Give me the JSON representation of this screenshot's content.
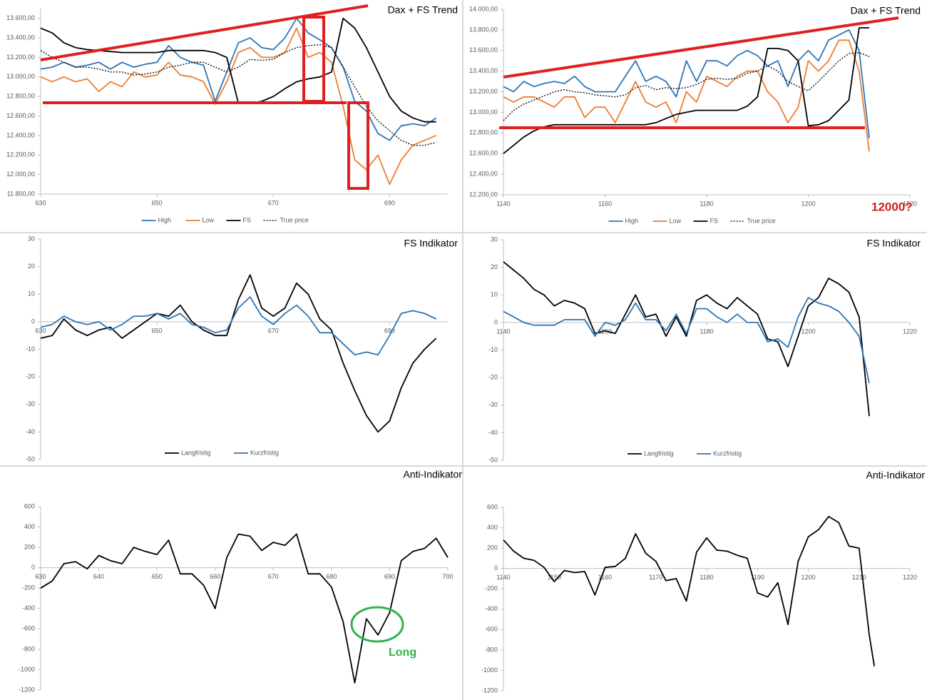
{
  "chart_data": [
    {
      "type": "line",
      "title": "Dax + FS Trend",
      "legend": "bottom",
      "x_axis_position": "bottom",
      "x": [
        630,
        632,
        634,
        636,
        638,
        640,
        642,
        644,
        646,
        648,
        650,
        652,
        654,
        656,
        658,
        660,
        662,
        664,
        666,
        668,
        670,
        672,
        674,
        676,
        678,
        680,
        682,
        684,
        686,
        688,
        690,
        692,
        694,
        696,
        698
      ],
      "xlim": [
        630,
        700
      ],
      "xticks": [
        630,
        650,
        670,
        690
      ],
      "ylim": [
        11800,
        13700
      ],
      "yticks": [
        {
          "value": 11800,
          "label": "11.800,00"
        },
        {
          "value": 12000,
          "label": "12.000,00"
        },
        {
          "value": 12200,
          "label": "12.200,00"
        },
        {
          "value": 12400,
          "label": "12.400,00"
        },
        {
          "value": 12600,
          "label": "12.600,00"
        },
        {
          "value": 12800,
          "label": "12.800,00"
        },
        {
          "value": 13000,
          "label": "13.000,00"
        },
        {
          "value": 13200,
          "label": "13.200,00"
        },
        {
          "value": 13400,
          "label": "13.400,00"
        },
        {
          "value": 13600,
          "label": "13.600,00"
        }
      ],
      "series": [
        {
          "name": "High",
          "color": "#2e75b6",
          "values": [
            13080,
            13100,
            13150,
            13100,
            13120,
            13150,
            13080,
            13150,
            13100,
            13130,
            13150,
            13320,
            13200,
            13150,
            13120,
            12750,
            13050,
            13350,
            13400,
            13300,
            13280,
            13400,
            13600,
            13450,
            13380,
            13300,
            13100,
            12750,
            12650,
            12420,
            12350,
            12500,
            12520,
            12500,
            12580
          ]
        },
        {
          "name": "Low",
          "color": "#ed7d31",
          "values": [
            13000,
            12950,
            13000,
            12950,
            12980,
            12850,
            12950,
            12900,
            13050,
            13000,
            13020,
            13150,
            13020,
            13000,
            12950,
            12720,
            12950,
            13250,
            13300,
            13200,
            13200,
            13250,
            13500,
            13200,
            13250,
            13150,
            12700,
            12150,
            12050,
            12200,
            11900,
            12150,
            12300,
            12350,
            12400
          ]
        },
        {
          "name": "FS",
          "color": "#000000",
          "values": [
            13500,
            13450,
            13350,
            13300,
            13280,
            13270,
            13260,
            13250,
            13250,
            13250,
            13250,
            13270,
            13270,
            13270,
            13270,
            13250,
            13200,
            12730,
            12730,
            12750,
            12800,
            12880,
            12950,
            12980,
            13000,
            13050,
            13600,
            13500,
            13300,
            13050,
            12800,
            12650,
            12580,
            12540,
            12540
          ]
        },
        {
          "name": "True price",
          "color": "#000000",
          "line_style": "dotted",
          "values": [
            13270,
            13200,
            13150,
            13100,
            13100,
            13080,
            13050,
            13050,
            13020,
            13030,
            13050,
            13100,
            13120,
            13150,
            13150,
            13100,
            13050,
            13100,
            13180,
            13170,
            13180,
            13250,
            13300,
            13320,
            13330,
            13300,
            13100,
            12900,
            12700,
            12550,
            12450,
            12350,
            12300,
            12300,
            12330
          ]
        }
      ]
    },
    {
      "type": "line",
      "title": "Dax + FS Trend",
      "legend": "bottom",
      "x_axis_position": "bottom",
      "annotations": [
        "12000?"
      ],
      "x": [
        1140,
        1142,
        1144,
        1146,
        1148,
        1150,
        1152,
        1154,
        1156,
        1158,
        1160,
        1162,
        1164,
        1166,
        1168,
        1170,
        1172,
        1174,
        1176,
        1178,
        1180,
        1182,
        1184,
        1186,
        1188,
        1190,
        1192,
        1194,
        1196,
        1198,
        1200,
        1202,
        1204,
        1206,
        1208,
        1210,
        1212
      ],
      "xlim": [
        1140,
        1220
      ],
      "xticks": [
        1140,
        1160,
        1180,
        1200,
        1220
      ],
      "ylim": [
        12200,
        14000
      ],
      "yticks": [
        {
          "value": 12200,
          "label": "12.200,00"
        },
        {
          "value": 12400,
          "label": "12.400,00"
        },
        {
          "value": 12600,
          "label": "12.600,00"
        },
        {
          "value": 12800,
          "label": "12.800,00"
        },
        {
          "value": 13000,
          "label": "13.000,00"
        },
        {
          "value": 13200,
          "label": "13.200,00"
        },
        {
          "value": 13400,
          "label": "13.400,00"
        },
        {
          "value": 13600,
          "label": "13.600,00"
        },
        {
          "value": 13800,
          "label": "13.800,00"
        },
        {
          "value": 14000,
          "label": "14.000,00"
        }
      ],
      "series": [
        {
          "name": "High",
          "color": "#2e75b6",
          "values": [
            13250,
            13200,
            13300,
            13250,
            13280,
            13300,
            13280,
            13350,
            13250,
            13200,
            13200,
            13200,
            13350,
            13500,
            13300,
            13350,
            13300,
            13150,
            13500,
            13300,
            13500,
            13500,
            13450,
            13550,
            13600,
            13550,
            13450,
            13500,
            13250,
            13500,
            13600,
            13500,
            13700,
            13750,
            13800,
            13600,
            12750
          ]
        },
        {
          "name": "Low",
          "color": "#ed7d31",
          "values": [
            13150,
            13100,
            13150,
            13150,
            13100,
            13050,
            13150,
            13150,
            12950,
            13050,
            13050,
            12900,
            13100,
            13300,
            13100,
            13050,
            13100,
            12900,
            13200,
            13100,
            13350,
            13300,
            13250,
            13350,
            13400,
            13400,
            13200,
            13100,
            12900,
            13050,
            13500,
            13400,
            13500,
            13700,
            13700,
            13400,
            12620
          ]
        },
        {
          "name": "FS",
          "color": "#000000",
          "values": [
            12600,
            12680,
            12760,
            12820,
            12860,
            12880,
            12880,
            12880,
            12880,
            12880,
            12880,
            12880,
            12880,
            12880,
            12880,
            12900,
            12940,
            12980,
            13000,
            13020,
            13020,
            13020,
            13020,
            13020,
            13060,
            13150,
            13620,
            13620,
            13600,
            13500,
            12870,
            12880,
            12920,
            13020,
            13120,
            13820,
            13820
          ]
        },
        {
          "name": "True price",
          "color": "#000000",
          "line_style": "dotted",
          "values": [
            12920,
            13020,
            13080,
            13120,
            13160,
            13200,
            13220,
            13200,
            13190,
            13170,
            13160,
            13150,
            13170,
            13240,
            13260,
            13220,
            13240,
            13230,
            13240,
            13270,
            13320,
            13330,
            13320,
            13330,
            13380,
            13400,
            13450,
            13400,
            13300,
            13250,
            13210,
            13300,
            13400,
            13500,
            13570,
            13580,
            13540
          ]
        }
      ]
    },
    {
      "type": "line",
      "title": "FS Indikator",
      "legend": "bottom",
      "x_axis_position": "zero",
      "x": [
        630,
        632,
        634,
        636,
        638,
        640,
        642,
        644,
        646,
        648,
        650,
        652,
        654,
        656,
        658,
        660,
        662,
        664,
        666,
        668,
        670,
        672,
        674,
        676,
        678,
        680,
        682,
        684,
        686,
        688,
        690,
        692,
        694,
        696,
        698
      ],
      "xlim": [
        630,
        700
      ],
      "xticks": [
        630,
        650,
        670,
        690
      ],
      "ylim": [
        -50,
        30
      ],
      "yticks": [
        -50,
        -40,
        -30,
        -20,
        -10,
        0,
        10,
        20,
        30
      ],
      "series": [
        {
          "name": "Langfristig",
          "color": "#000000",
          "values": [
            -6,
            -5,
            1,
            -3,
            -5,
            -3,
            -2,
            -6,
            -3,
            0,
            3,
            2,
            6,
            0,
            -3,
            -5,
            -5,
            8,
            17,
            5,
            2,
            5,
            14,
            10,
            1,
            -3,
            -15,
            -25,
            -34,
            -40,
            -36,
            -24,
            -15,
            -10,
            -6
          ]
        },
        {
          "name": "Kurzfristig",
          "color": "#2e75b6",
          "values": [
            -2,
            -1,
            2,
            0,
            -1,
            0,
            -3,
            -1,
            2,
            2,
            3,
            1,
            3,
            -1,
            -2,
            -4,
            -3,
            5,
            9,
            2,
            -1,
            3,
            6,
            2,
            -4,
            -4,
            -8,
            -12,
            -11,
            -12,
            -5,
            3,
            4,
            3,
            1
          ]
        }
      ]
    },
    {
      "type": "line",
      "title": "FS Indikator",
      "legend": "bottom",
      "x_axis_position": "zero",
      "x": [
        1140,
        1142,
        1144,
        1146,
        1148,
        1150,
        1152,
        1154,
        1156,
        1158,
        1160,
        1162,
        1164,
        1166,
        1168,
        1170,
        1172,
        1174,
        1176,
        1178,
        1180,
        1182,
        1184,
        1186,
        1188,
        1190,
        1192,
        1194,
        1196,
        1198,
        1200,
        1202,
        1204,
        1206,
        1208,
        1210,
        1212
      ],
      "xlim": [
        1140,
        1220
      ],
      "xticks": [
        1140,
        1160,
        1180,
        1200,
        1220
      ],
      "ylim": [
        -50,
        30
      ],
      "yticks": [
        -50,
        -40,
        -30,
        -20,
        -10,
        0,
        10,
        20,
        30
      ],
      "series": [
        {
          "name": "Langfristig",
          "color": "#000000",
          "values": [
            22,
            19,
            16,
            12,
            10,
            6,
            8,
            7,
            5,
            -4,
            -3,
            -4,
            3,
            10,
            2,
            3,
            -5,
            2,
            -5,
            8,
            10,
            7,
            5,
            9,
            6,
            3,
            -6,
            -7,
            -16,
            -5,
            6,
            9,
            16,
            14,
            11,
            2,
            -34
          ]
        },
        {
          "name": "Kurzfristig",
          "color": "#2e75b6",
          "values": [
            4,
            2,
            0,
            -1,
            -1,
            -1,
            1,
            1,
            1,
            -5,
            0,
            -1,
            1,
            7,
            1,
            1,
            -3,
            3,
            -4,
            5,
            5,
            2,
            0,
            3,
            0,
            0,
            -7,
            -6,
            -9,
            2,
            9,
            7,
            6,
            4,
            0,
            -5,
            -22
          ]
        }
      ]
    },
    {
      "type": "line",
      "title": "Anti-Indikator",
      "x_axis_position": "zero",
      "annotations": [
        "Long"
      ],
      "x": [
        630,
        632,
        634,
        636,
        638,
        640,
        642,
        644,
        646,
        648,
        650,
        652,
        654,
        656,
        658,
        660,
        662,
        664,
        666,
        668,
        670,
        672,
        674,
        676,
        678,
        680,
        682,
        684,
        686,
        688,
        690,
        692,
        694,
        696,
        698,
        700
      ],
      "xlim": [
        630,
        700
      ],
      "xticks": [
        630,
        640,
        650,
        660,
        670,
        680,
        690,
        700
      ],
      "ylim": [
        -1200,
        600
      ],
      "yticks": [
        -1200,
        -1000,
        -800,
        -600,
        -400,
        -200,
        0,
        200,
        400,
        600
      ],
      "color": "#000000",
      "values": [
        -200,
        -130,
        40,
        60,
        -10,
        120,
        70,
        40,
        200,
        160,
        130,
        270,
        -60,
        -60,
        -170,
        -400,
        100,
        330,
        310,
        170,
        250,
        220,
        330,
        -60,
        -60,
        -190,
        -530,
        -1130,
        -500,
        -660,
        -440,
        70,
        160,
        190,
        290,
        100
      ]
    },
    {
      "type": "line",
      "title": "Anti-Indikator",
      "x_axis_position": "zero",
      "x": [
        1140,
        1142,
        1144,
        1146,
        1148,
        1150,
        1152,
        1154,
        1156,
        1158,
        1160,
        1162,
        1164,
        1166,
        1168,
        1170,
        1172,
        1174,
        1176,
        1178,
        1180,
        1182,
        1184,
        1186,
        1188,
        1190,
        1192,
        1194,
        1196,
        1198,
        1200,
        1202,
        1204,
        1206,
        1208,
        1210,
        1212,
        1213
      ],
      "xlim": [
        1140,
        1220
      ],
      "xticks": [
        1140,
        1150,
        1160,
        1170,
        1180,
        1190,
        1200,
        1210,
        1220
      ],
      "ylim": [
        -1200,
        600
      ],
      "yticks": [
        -1200,
        -1000,
        -800,
        -600,
        -400,
        -200,
        0,
        200,
        400,
        600
      ],
      "color": "#000000",
      "values": [
        280,
        170,
        100,
        80,
        10,
        -130,
        -20,
        -40,
        -30,
        -260,
        10,
        20,
        100,
        340,
        150,
        70,
        -120,
        -100,
        -320,
        160,
        300,
        180,
        170,
        130,
        100,
        -240,
        -280,
        -140,
        -550,
        70,
        310,
        380,
        510,
        450,
        220,
        200,
        -650,
        -960
      ]
    }
  ]
}
